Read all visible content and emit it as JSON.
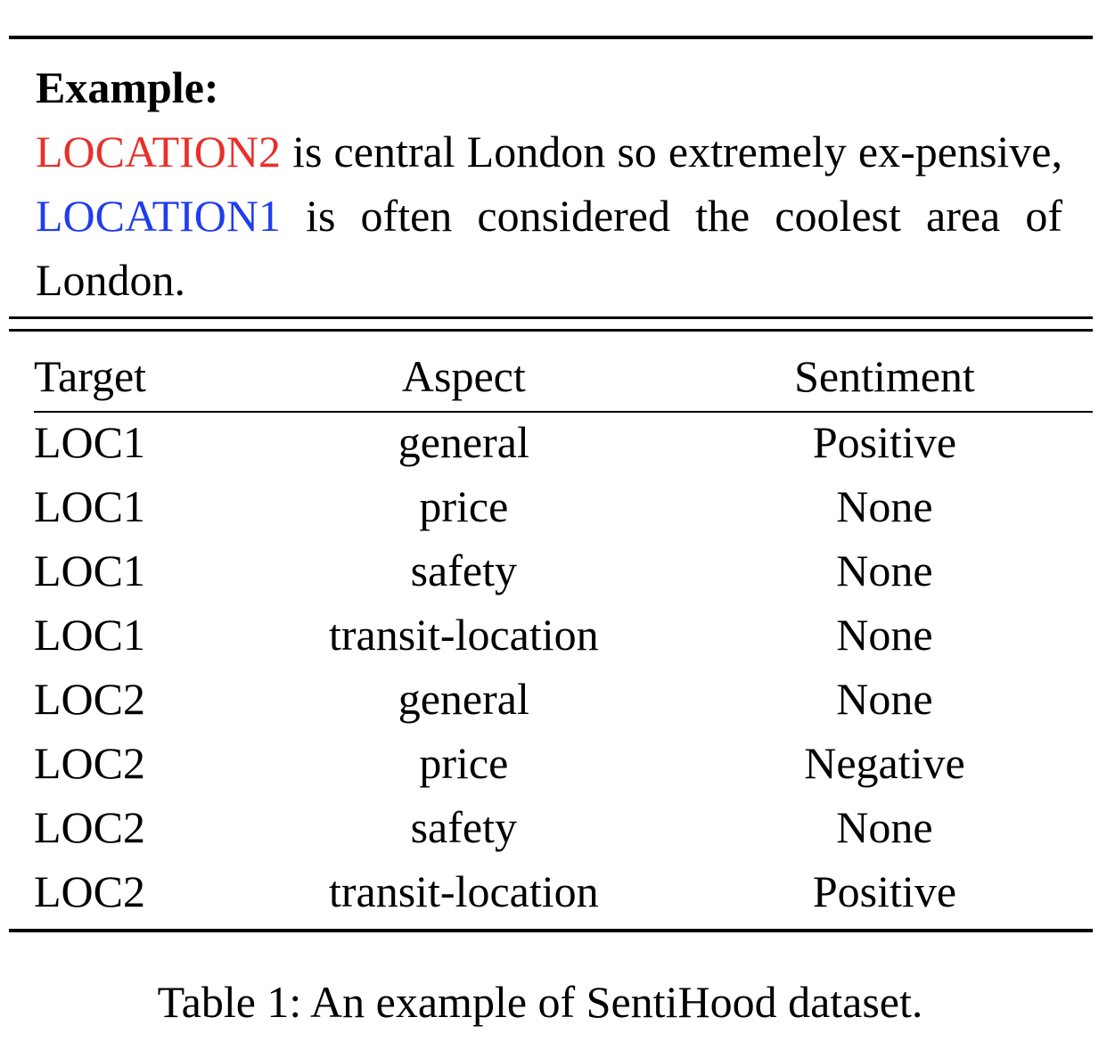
{
  "example": {
    "label": "Example:",
    "loc2": "LOCATION2",
    "text_a": " is central London so extremely ex-pensive, ",
    "loc1": "LOCATION1",
    "text_b": " is often considered the coolest area of London."
  },
  "table": {
    "headers": [
      "Target",
      "Aspect",
      "Sentiment"
    ],
    "rows": [
      [
        "LOC1",
        "general",
        "Positive"
      ],
      [
        "LOC1",
        "price",
        "None"
      ],
      [
        "LOC1",
        "safety",
        "None"
      ],
      [
        "LOC1",
        "transit-location",
        "None"
      ],
      [
        "LOC2",
        "general",
        "None"
      ],
      [
        "LOC2",
        "price",
        "Negative"
      ],
      [
        "LOC2",
        "safety",
        "None"
      ],
      [
        "LOC2",
        "transit-location",
        "Positive"
      ]
    ]
  },
  "caption": "Table 1:  An example of SentiHood dataset.",
  "colors": {
    "loc2": "#e8302a",
    "loc1": "#1f3df0"
  }
}
